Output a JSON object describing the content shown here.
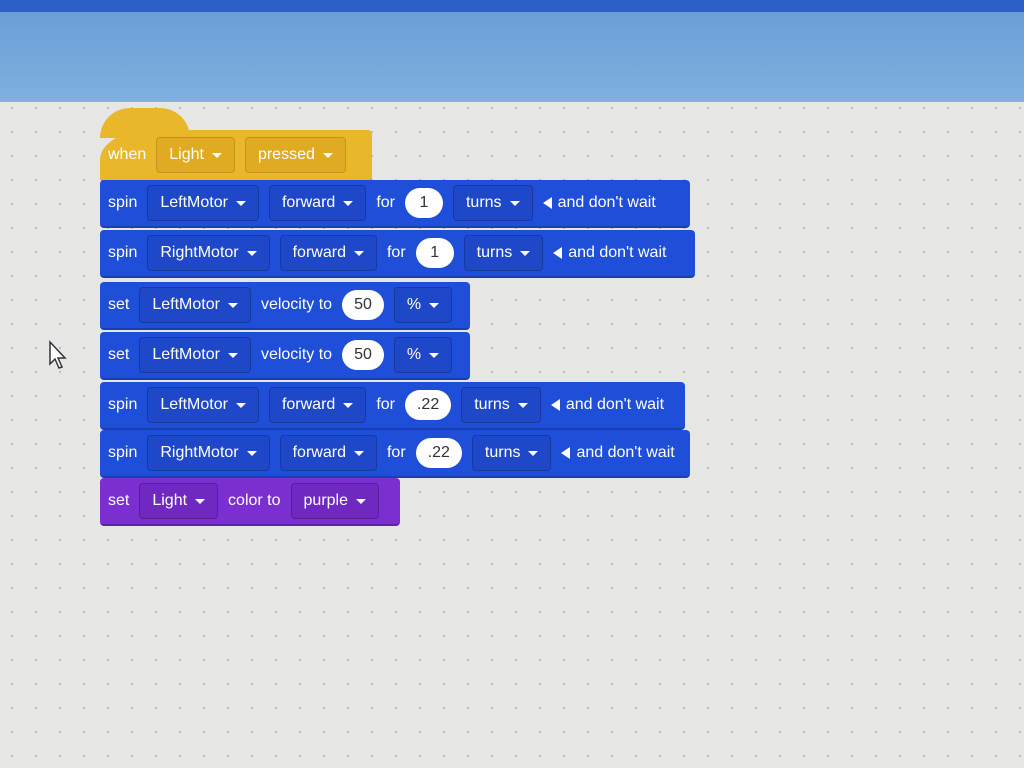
{
  "colors": {
    "event": "#e9b82a",
    "motion": "#1f4fd8",
    "looks": "#7b2fd0"
  },
  "blocks": [
    {
      "type": "event",
      "tokens": [
        {
          "k": "text",
          "v": "when"
        },
        {
          "k": "dd",
          "v": "Light"
        },
        {
          "k": "dd",
          "v": "pressed"
        }
      ]
    },
    {
      "type": "motion",
      "tokens": [
        {
          "k": "text",
          "v": "spin"
        },
        {
          "k": "dd",
          "v": "LeftMotor"
        },
        {
          "k": "dd",
          "v": "forward"
        },
        {
          "k": "text",
          "v": "for"
        },
        {
          "k": "num",
          "v": "1"
        },
        {
          "k": "dd",
          "v": "turns"
        },
        {
          "k": "opt",
          "v": "and don't wait"
        }
      ]
    },
    {
      "type": "motion",
      "tokens": [
        {
          "k": "text",
          "v": "spin"
        },
        {
          "k": "dd",
          "v": "RightMotor"
        },
        {
          "k": "dd",
          "v": "forward"
        },
        {
          "k": "text",
          "v": "for"
        },
        {
          "k": "num",
          "v": "1"
        },
        {
          "k": "dd",
          "v": "turns"
        },
        {
          "k": "opt",
          "v": "and don't wait"
        }
      ]
    },
    {
      "type": "motion",
      "tokens": [
        {
          "k": "text",
          "v": "set"
        },
        {
          "k": "dd",
          "v": "LeftMotor"
        },
        {
          "k": "text",
          "v": "velocity to"
        },
        {
          "k": "num",
          "v": "50"
        },
        {
          "k": "dd",
          "v": "%"
        }
      ]
    },
    {
      "type": "motion",
      "tokens": [
        {
          "k": "text",
          "v": "set"
        },
        {
          "k": "dd",
          "v": "LeftMotor"
        },
        {
          "k": "text",
          "v": "velocity to"
        },
        {
          "k": "num",
          "v": "50"
        },
        {
          "k": "dd",
          "v": "%"
        }
      ]
    },
    {
      "type": "motion",
      "tokens": [
        {
          "k": "text",
          "v": "spin"
        },
        {
          "k": "dd",
          "v": "LeftMotor"
        },
        {
          "k": "dd",
          "v": "forward"
        },
        {
          "k": "text",
          "v": "for"
        },
        {
          "k": "num",
          "v": ".22"
        },
        {
          "k": "dd",
          "v": "turns"
        },
        {
          "k": "opt",
          "v": "and don't wait"
        }
      ]
    },
    {
      "type": "motion",
      "tokens": [
        {
          "k": "text",
          "v": "spin"
        },
        {
          "k": "dd",
          "v": "RightMotor"
        },
        {
          "k": "dd",
          "v": "forward"
        },
        {
          "k": "text",
          "v": "for"
        },
        {
          "k": "num",
          "v": ".22"
        },
        {
          "k": "dd",
          "v": "turns"
        },
        {
          "k": "opt",
          "v": "and don't wait"
        }
      ]
    },
    {
      "type": "looks",
      "tokens": [
        {
          "k": "text",
          "v": "set"
        },
        {
          "k": "dd",
          "v": "Light"
        },
        {
          "k": "text",
          "v": "color to"
        },
        {
          "k": "dd",
          "v": "purple"
        }
      ]
    }
  ]
}
